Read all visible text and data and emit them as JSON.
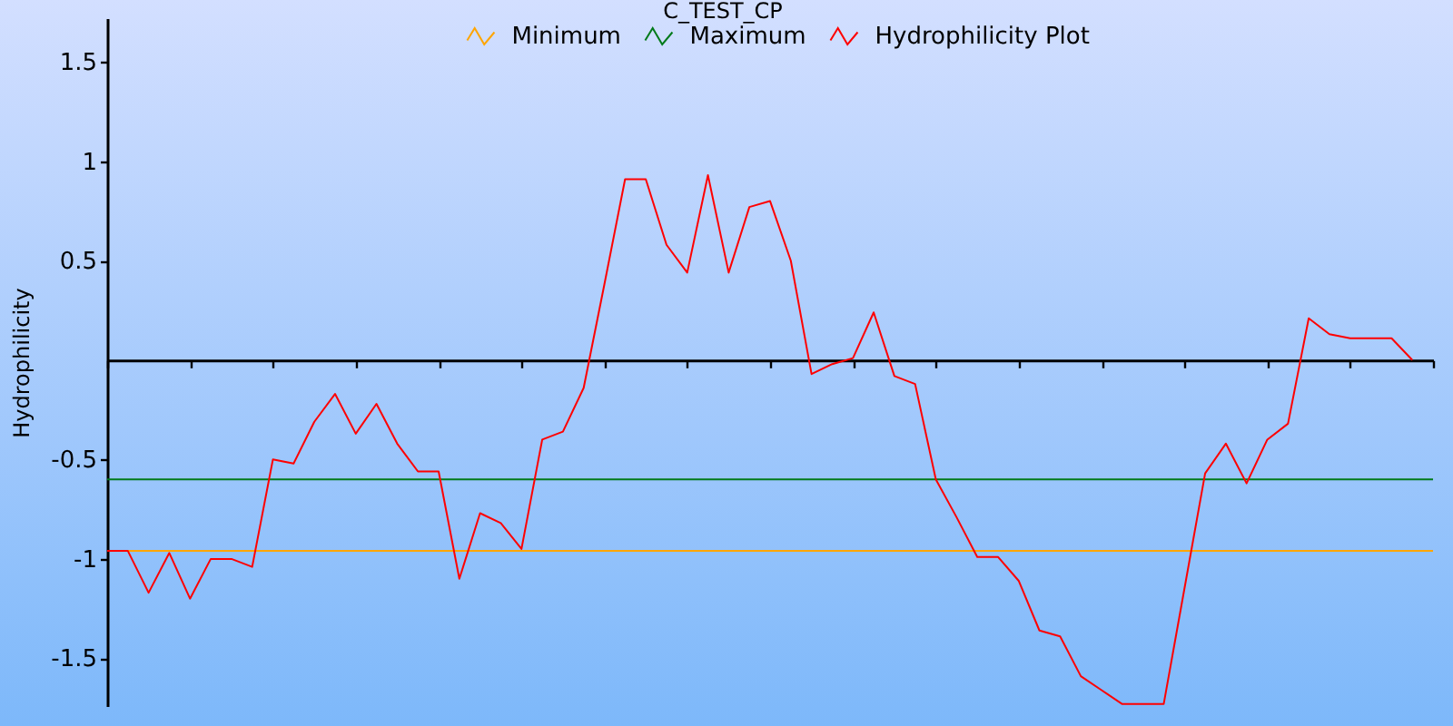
{
  "chart_data": {
    "type": "line",
    "title": "C_TEST_CP",
    "ylabel": "Hydrophilicity",
    "categories": [
      null,
      null,
      null,
      null,
      null,
      null,
      null,
      null,
      null,
      null,
      null,
      null,
      null,
      null,
      null,
      null,
      null,
      null,
      null,
      null,
      null,
      null,
      null,
      null,
      null,
      null,
      null,
      null,
      null,
      null,
      null,
      null,
      null,
      null,
      null,
      null,
      null,
      null,
      null,
      null,
      null,
      null,
      null,
      null,
      null,
      null,
      null,
      null,
      null,
      null,
      null,
      null,
      null,
      null,
      null,
      null,
      null,
      null,
      null,
      null,
      null,
      null,
      null,
      null,
      null
    ],
    "series": [
      {
        "name": "Minimum",
        "color": "#ffa500",
        "values": [
          -0.96,
          -0.96,
          -0.96,
          -0.96,
          -0.96,
          -0.96,
          -0.96,
          -0.96,
          -0.96,
          -0.96,
          -0.96,
          -0.96,
          -0.96,
          -0.96,
          -0.96,
          -0.96,
          -0.96,
          -0.96,
          -0.96,
          -0.96,
          -0.96,
          -0.96,
          -0.96,
          -0.96,
          -0.96,
          -0.96,
          -0.96,
          -0.96,
          -0.96,
          -0.96,
          -0.96,
          -0.96,
          -0.96,
          -0.96,
          -0.96,
          -0.96,
          -0.96,
          -0.96,
          -0.96,
          -0.96,
          -0.96,
          -0.96,
          -0.96,
          -0.96,
          -0.96,
          -0.96,
          -0.96,
          -0.96,
          -0.96,
          -0.96,
          -0.96,
          -0.96,
          -0.96,
          -0.96,
          -0.96,
          -0.96,
          -0.96,
          -0.96,
          -0.96,
          -0.96,
          -0.96,
          -0.96,
          -0.96,
          -0.96,
          -0.96
        ]
      },
      {
        "name": "Maximum",
        "color": "#007a1a",
        "values": [
          -0.6,
          -0.6,
          -0.6,
          -0.6,
          -0.6,
          -0.6,
          -0.6,
          -0.6,
          -0.6,
          -0.6,
          -0.6,
          -0.6,
          -0.6,
          -0.6,
          -0.6,
          -0.6,
          -0.6,
          -0.6,
          -0.6,
          -0.6,
          -0.6,
          -0.6,
          -0.6,
          -0.6,
          -0.6,
          -0.6,
          -0.6,
          -0.6,
          -0.6,
          -0.6,
          -0.6,
          -0.6,
          -0.6,
          -0.6,
          -0.6,
          -0.6,
          -0.6,
          -0.6,
          -0.6,
          -0.6,
          -0.6,
          -0.6,
          -0.6,
          -0.6,
          -0.6,
          -0.6,
          -0.6,
          -0.6,
          -0.6,
          -0.6,
          -0.6,
          -0.6,
          -0.6,
          -0.6,
          -0.6,
          -0.6,
          -0.6,
          -0.6,
          -0.6,
          -0.6,
          -0.6,
          -0.6,
          -0.6,
          -0.6,
          -0.6
        ]
      },
      {
        "name": "Hydrophilicity Plot",
        "color": "#ff0000",
        "values": [
          -0.96,
          -0.96,
          -1.17,
          -0.97,
          -1.2,
          -1.0,
          -1.0,
          -1.04,
          -0.5,
          -0.52,
          -0.31,
          -0.17,
          -0.37,
          -0.22,
          -0.42,
          -0.56,
          -0.56,
          -1.1,
          -0.77,
          -0.82,
          -0.95,
          -0.4,
          -0.36,
          -0.14,
          0.38,
          0.91,
          0.91,
          0.58,
          0.44,
          0.93,
          0.44,
          0.77,
          0.8,
          0.5,
          -0.07,
          -0.02,
          0.01,
          0.24,
          -0.08,
          -0.12,
          -0.6,
          -0.79,
          -0.99,
          -0.99,
          -1.11,
          -1.36,
          -1.39,
          -1.59,
          -1.66,
          -1.73,
          -1.73,
          -1.73,
          -1.15,
          -0.57,
          -0.42,
          -0.62,
          -0.4,
          -0.32,
          0.21,
          0.13,
          0.11,
          0.11,
          0.11,
          0,
          null
        ]
      }
    ],
    "ylim": [
      -1.74,
      1.72
    ],
    "yticks": [
      -1.5,
      -1,
      -0.5,
      0.5,
      1,
      1.5
    ],
    "legend": "top",
    "tick_labels": "y",
    "grid": false
  }
}
